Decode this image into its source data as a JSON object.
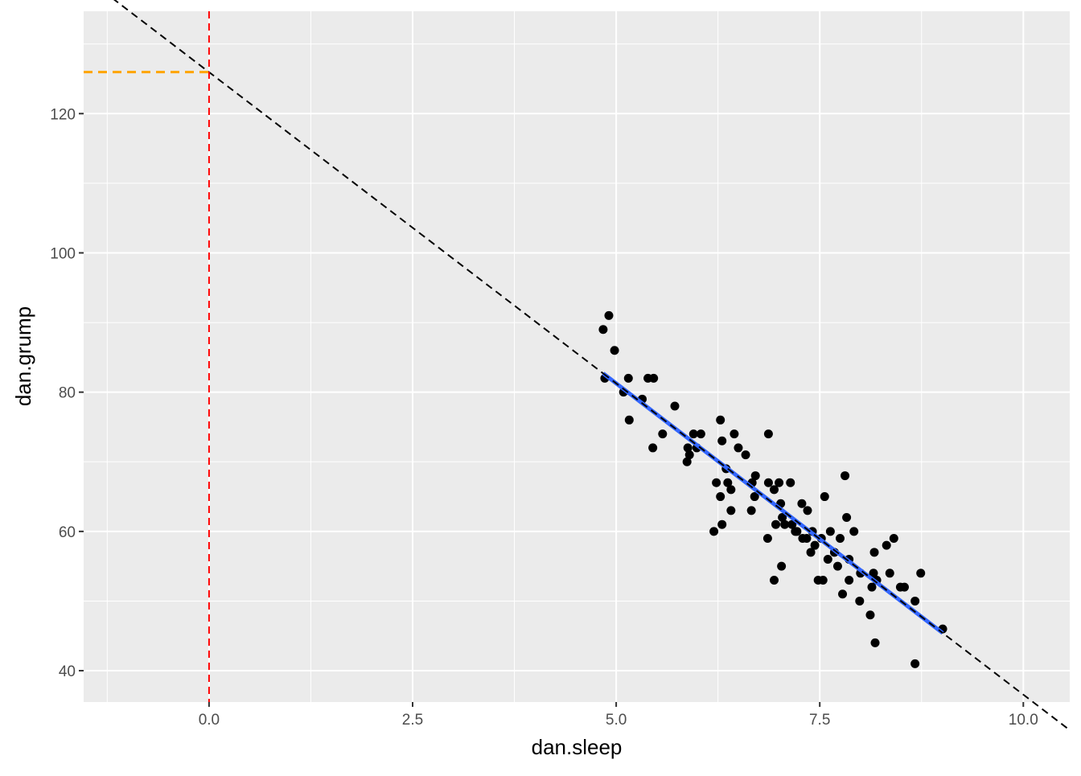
{
  "chart_data": {
    "type": "scatter",
    "title": "",
    "xlabel": "dan.sleep",
    "ylabel": "dan.grump",
    "xlim": [
      -1.54,
      10.57
    ],
    "ylim": [
      35.5,
      134.7
    ],
    "x_ticks": [
      "0.0",
      "2.5",
      "5.0",
      "7.5",
      "10.0"
    ],
    "x_tick_values": [
      0,
      2.5,
      5,
      7.5,
      10
    ],
    "y_ticks": [
      "40",
      "60",
      "80",
      "100",
      "120"
    ],
    "y_tick_values": [
      40,
      60,
      80,
      100,
      120
    ],
    "grid": true,
    "points": [
      [
        4.84,
        89
      ],
      [
        4.91,
        91
      ],
      [
        4.98,
        86
      ],
      [
        4.86,
        82
      ],
      [
        5.15,
        82
      ],
      [
        5.09,
        80
      ],
      [
        5.32,
        79
      ],
      [
        5.16,
        76
      ],
      [
        5.39,
        82
      ],
      [
        5.46,
        82
      ],
      [
        5.45,
        72
      ],
      [
        5.57,
        74
      ],
      [
        5.72,
        78
      ],
      [
        5.88,
        72
      ],
      [
        5.87,
        70
      ],
      [
        5.9,
        71
      ],
      [
        5.95,
        74
      ],
      [
        6.04,
        74
      ],
      [
        5.99,
        72
      ],
      [
        6.28,
        76
      ],
      [
        6.3,
        73
      ],
      [
        6.45,
        74
      ],
      [
        6.5,
        72
      ],
      [
        6.59,
        71
      ],
      [
        6.87,
        74
      ],
      [
        6.2,
        60
      ],
      [
        6.23,
        67
      ],
      [
        6.28,
        65
      ],
      [
        6.3,
        61
      ],
      [
        6.35,
        69
      ],
      [
        6.37,
        67
      ],
      [
        6.41,
        66
      ],
      [
        6.41,
        63
      ],
      [
        6.66,
        63
      ],
      [
        6.67,
        67
      ],
      [
        6.71,
        68
      ],
      [
        6.7,
        65
      ],
      [
        6.87,
        67
      ],
      [
        6.94,
        66
      ],
      [
        7.0,
        67
      ],
      [
        7.14,
        67
      ],
      [
        6.86,
        59
      ],
      [
        6.94,
        53
      ],
      [
        6.96,
        61
      ],
      [
        7.02,
        64
      ],
      [
        7.03,
        55
      ],
      [
        7.04,
        62
      ],
      [
        7.07,
        61
      ],
      [
        7.16,
        61
      ],
      [
        7.2,
        60
      ],
      [
        7.22,
        60
      ],
      [
        7.28,
        64
      ],
      [
        7.35,
        63
      ],
      [
        7.29,
        59
      ],
      [
        7.34,
        59
      ],
      [
        7.41,
        60
      ],
      [
        7.39,
        57
      ],
      [
        7.44,
        58
      ],
      [
        7.48,
        53
      ],
      [
        7.54,
        53
      ],
      [
        7.52,
        59
      ],
      [
        7.56,
        65
      ],
      [
        7.6,
        56
      ],
      [
        7.63,
        60
      ],
      [
        7.68,
        57
      ],
      [
        7.72,
        55
      ],
      [
        7.75,
        59
      ],
      [
        7.78,
        51
      ],
      [
        7.81,
        68
      ],
      [
        7.83,
        62
      ],
      [
        7.86,
        56
      ],
      [
        7.86,
        53
      ],
      [
        7.92,
        60
      ],
      [
        7.99,
        50
      ],
      [
        8.0,
        54
      ],
      [
        8.12,
        48
      ],
      [
        8.14,
        52
      ],
      [
        8.16,
        54
      ],
      [
        8.17,
        57
      ],
      [
        8.18,
        44
      ],
      [
        8.2,
        53
      ],
      [
        8.32,
        58
      ],
      [
        8.36,
        54
      ],
      [
        8.41,
        59
      ],
      [
        8.49,
        52
      ],
      [
        8.54,
        52
      ],
      [
        8.67,
        50
      ],
      [
        8.67,
        41
      ],
      [
        8.74,
        54
      ],
      [
        9.01,
        46
      ]
    ],
    "regression_line": {
      "intercept": 125.96,
      "slope": -8.94,
      "style": "dashed",
      "color": "#000000"
    },
    "fit_line": {
      "x_range": [
        4.84,
        9.01
      ],
      "color": "#3366FF"
    },
    "vline": {
      "x": 0,
      "color": "#FF0000",
      "style": "dashed"
    },
    "hline": {
      "y": 125.96,
      "x_to": 0,
      "color": "#FFA500",
      "style": "dashed"
    },
    "panel_color": "#EBEBEB"
  }
}
